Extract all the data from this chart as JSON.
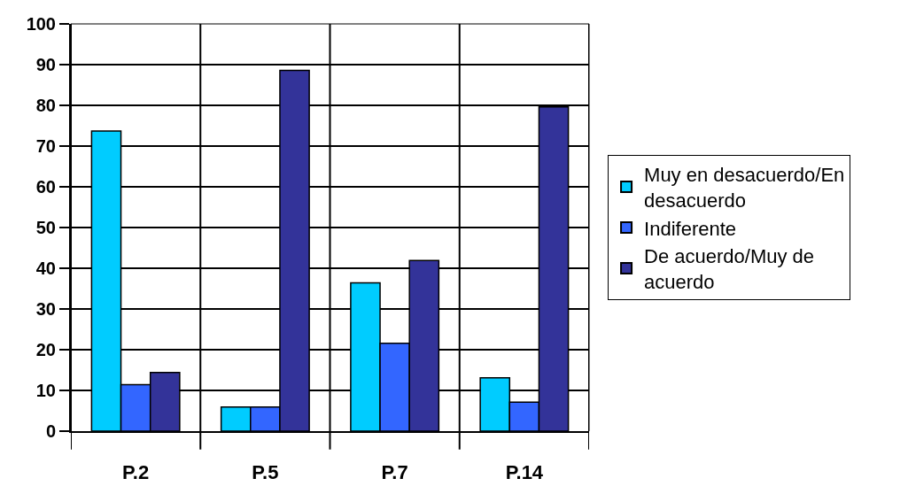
{
  "chart_data": {
    "type": "bar",
    "categories": [
      "P.2",
      "P.5",
      "P.7",
      "P.14"
    ],
    "series": [
      {
        "name": "Muy en desacuerdo/En desacuerdo",
        "color": "#00ccff",
        "values": [
          73.7,
          5.9,
          36.4,
          13.1
        ]
      },
      {
        "name": "Indiferente",
        "color": "#3366ff",
        "values": [
          11.4,
          5.9,
          21.6,
          7.1
        ]
      },
      {
        "name": "De acuerdo/Muy de acuerdo",
        "color": "#333399",
        "values": [
          14.4,
          88.6,
          41.9,
          79.6
        ]
      }
    ],
    "ylim": [
      0,
      100
    ],
    "yticks": [
      0,
      10,
      20,
      30,
      40,
      50,
      60,
      70,
      80,
      90,
      100
    ],
    "grid": true,
    "legend": "right"
  }
}
